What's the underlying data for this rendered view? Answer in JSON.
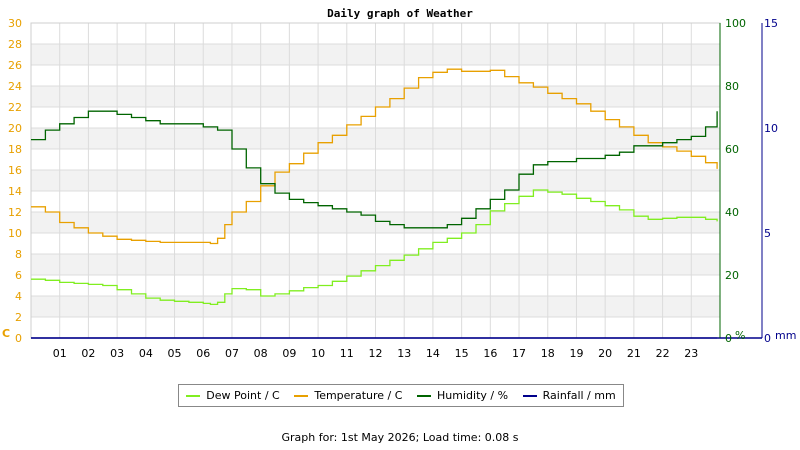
{
  "chart_data": {
    "type": "line",
    "title": "Daily graph of Weather",
    "x_ticks": [
      "01",
      "02",
      "03",
      "04",
      "05",
      "06",
      "07",
      "08",
      "09",
      "10",
      "11",
      "12",
      "13",
      "14",
      "15",
      "16",
      "17",
      "18",
      "19",
      "20",
      "21",
      "22",
      "23"
    ],
    "xlim": [
      0,
      24
    ],
    "axes": {
      "left": {
        "unit": "C",
        "range": [
          0,
          30
        ],
        "ticks": [
          0,
          2,
          4,
          6,
          8,
          10,
          12,
          14,
          16,
          18,
          20,
          22,
          24,
          26,
          28,
          30
        ],
        "color": "#e8a000"
      },
      "right1": {
        "unit": "%",
        "range": [
          0,
          100
        ],
        "ticks": [
          0,
          20,
          40,
          60,
          80,
          100
        ],
        "color": "#006400"
      },
      "right2": {
        "unit": "mm",
        "range": [
          0,
          15
        ],
        "ticks": [
          0,
          5,
          10,
          15
        ],
        "color": "#00008b"
      }
    },
    "grid": true,
    "legend_placement": "bottom",
    "series": [
      {
        "name": "Dew Point / C",
        "color": "#80ee20",
        "axis": "left",
        "x": [
          0,
          0.5,
          1,
          1.5,
          2,
          2.5,
          3,
          3.5,
          4,
          4.5,
          5,
          5.5,
          6,
          6.25,
          6.5,
          6.75,
          7,
          7.5,
          8,
          8.5,
          9,
          9.5,
          10,
          10.5,
          11,
          11.5,
          12,
          12.5,
          13,
          13.5,
          14,
          14.5,
          15,
          15.5,
          16,
          16.5,
          17,
          17.5,
          18,
          18.5,
          19,
          19.5,
          20,
          20.5,
          21,
          21.5,
          22,
          22.5,
          23,
          23.5,
          23.9
        ],
        "y": [
          5.6,
          5.5,
          5.3,
          5.2,
          5.1,
          5.0,
          4.6,
          4.2,
          3.8,
          3.6,
          3.5,
          3.4,
          3.3,
          3.2,
          3.4,
          4.2,
          4.7,
          4.6,
          4.0,
          4.2,
          4.5,
          4.8,
          5.0,
          5.4,
          5.9,
          6.4,
          6.9,
          7.4,
          7.9,
          8.5,
          9.1,
          9.5,
          10.0,
          10.8,
          12.1,
          12.8,
          13.5,
          14.1,
          13.9,
          13.7,
          13.3,
          13.0,
          12.6,
          12.2,
          11.6,
          11.3,
          11.4,
          11.5,
          11.5,
          11.3,
          11.1
        ]
      },
      {
        "name": "Temperature / C",
        "color": "#e8a000",
        "axis": "left",
        "x": [
          0,
          0.5,
          1,
          1.5,
          2,
          2.5,
          3,
          3.5,
          4,
          4.5,
          5,
          5.5,
          6,
          6.25,
          6.5,
          6.75,
          7,
          7.5,
          8,
          8.5,
          9,
          9.5,
          10,
          10.5,
          11,
          11.5,
          12,
          12.5,
          13,
          13.5,
          14,
          14.5,
          15,
          15.5,
          16,
          16.5,
          17,
          17.5,
          18,
          18.5,
          19,
          19.5,
          20,
          20.5,
          21,
          21.5,
          22,
          22.5,
          23,
          23.5,
          23.9
        ],
        "y": [
          12.5,
          12.0,
          11.0,
          10.5,
          10.0,
          9.7,
          9.4,
          9.3,
          9.2,
          9.1,
          9.1,
          9.1,
          9.1,
          9.0,
          9.5,
          10.8,
          12.0,
          13.0,
          14.5,
          15.8,
          16.6,
          17.6,
          18.6,
          19.3,
          20.3,
          21.1,
          22.0,
          22.8,
          23.8,
          24.8,
          25.3,
          25.6,
          25.4,
          25.4,
          25.5,
          24.9,
          24.3,
          23.9,
          23.3,
          22.8,
          22.3,
          21.6,
          20.8,
          20.1,
          19.3,
          18.6,
          18.2,
          17.8,
          17.3,
          16.7,
          16.1
        ]
      },
      {
        "name": "Humidity / %",
        "color": "#006400",
        "axis": "right1",
        "x": [
          0,
          0.5,
          1,
          1.5,
          2,
          2.5,
          3,
          3.5,
          4,
          4.5,
          5,
          5.5,
          6,
          6.5,
          7,
          7.5,
          8,
          8.5,
          9,
          9.5,
          10,
          10.5,
          11,
          11.5,
          12,
          12.5,
          13,
          13.5,
          14,
          14.5,
          15,
          15.5,
          16,
          16.5,
          17,
          17.5,
          18,
          18.5,
          19,
          19.5,
          20,
          20.5,
          21,
          21.5,
          22,
          22.5,
          23,
          23.5,
          23.9
        ],
        "y": [
          63,
          66,
          68,
          70,
          72,
          72,
          71,
          70,
          69,
          68,
          68,
          68,
          67,
          66,
          60,
          54,
          49,
          46,
          44,
          43,
          42,
          41,
          40,
          39,
          37,
          36,
          35,
          35,
          35,
          36,
          38,
          41,
          44,
          47,
          52,
          55,
          56,
          56,
          57,
          57,
          58,
          59,
          61,
          61,
          62,
          63,
          64,
          67,
          72
        ]
      },
      {
        "name": "Rainfall / mm",
        "color": "#00008b",
        "axis": "right2",
        "x": [
          0,
          23.9
        ],
        "y": [
          0,
          0
        ]
      }
    ]
  },
  "footer": "Graph for: 1st May 2026; Load time: 0.08 s"
}
